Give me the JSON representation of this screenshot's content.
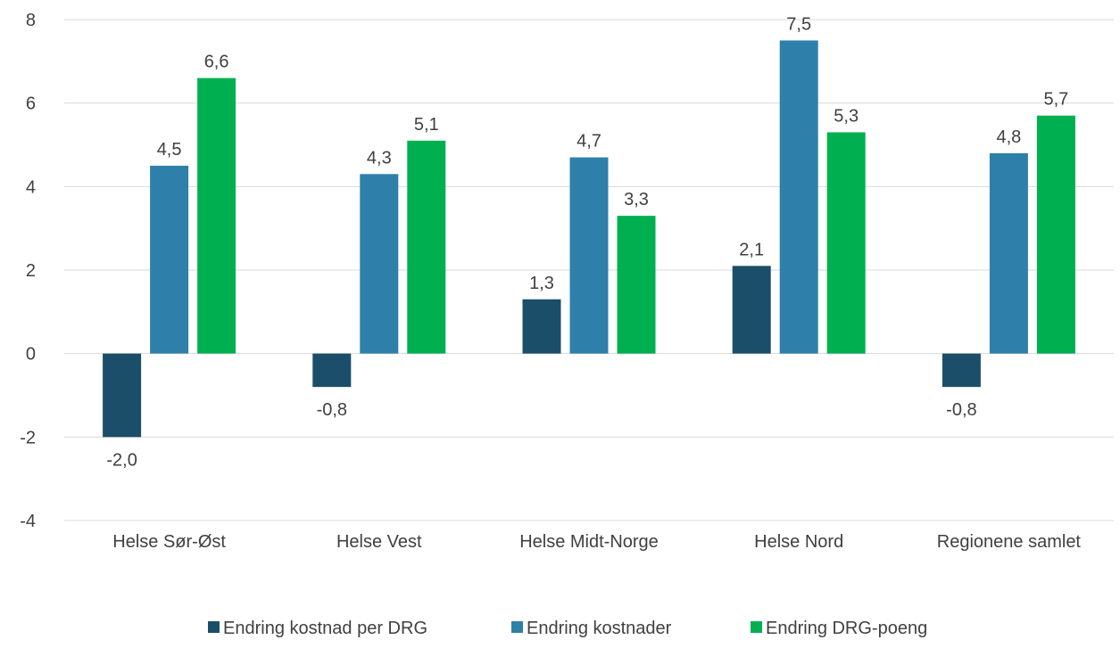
{
  "chart_data": {
    "type": "bar",
    "title": "",
    "xlabel": "",
    "ylabel": "",
    "categories": [
      "Helse Sør-Øst",
      "Helse Vest",
      "Helse Midt-Norge",
      "Helse Nord",
      "Regionene samlet"
    ],
    "series": [
      {
        "name": "Endring kostnad per DRG",
        "color": "#1b4e68",
        "values": [
          -2.0,
          -0.8,
          1.3,
          2.1,
          -0.8
        ],
        "labels": [
          "-2,0",
          "-0,8",
          "1,3",
          "2,1",
          "-0,8"
        ]
      },
      {
        "name": "Endring kostnader",
        "color": "#2e80aa",
        "values": [
          4.5,
          4.3,
          4.7,
          7.5,
          4.8
        ],
        "labels": [
          "4,5",
          "4,3",
          "4,7",
          "7,5",
          "4,8"
        ]
      },
      {
        "name": "Endring DRG-poeng",
        "color": "#00b050",
        "values": [
          6.6,
          5.1,
          3.3,
          5.3,
          5.7
        ],
        "labels": [
          "6,6",
          "5,1",
          "3,3",
          "5,3",
          "5,7"
        ]
      }
    ],
    "ylim": [
      -4,
      8
    ],
    "yticks": [
      -4,
      -2,
      0,
      2,
      4,
      6,
      8
    ],
    "ytick_labels": [
      "-4",
      "-2",
      "0",
      "2",
      "4",
      "6",
      "8"
    ],
    "grid": true,
    "legend": "bottom"
  }
}
